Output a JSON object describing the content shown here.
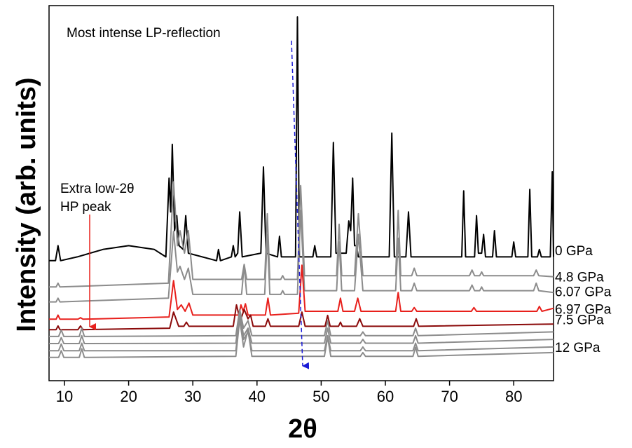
{
  "chart_data": {
    "type": "line",
    "x_label": "2θ",
    "y_label": "Intensity (arb.  units)",
    "xlim": [
      7.6,
      86.2
    ],
    "ylim": [
      0,
      100
    ],
    "xticks": [
      10,
      20,
      30,
      40,
      50,
      60,
      70,
      80
    ],
    "annotations": [
      {
        "text": "Most intense LP-reflection",
        "color": "#1a1ad6"
      },
      {
        "text": [
          "Extra low-2θ",
          "HP peak"
        ],
        "color": "#e8201c"
      }
    ],
    "series": [
      {
        "name": "0 GPa",
        "color": "#000000",
        "x": [
          7.6,
          8.6,
          9,
          9.4,
          12,
          16,
          20,
          24,
          25.8,
          26.3,
          26.55,
          26.8,
          27.15,
          27.5,
          27.85,
          28.5,
          28.9,
          29.3,
          33.7,
          34,
          34.3,
          36,
          36.3,
          36.6,
          37,
          37.3,
          37.7,
          40.6,
          41,
          41.4,
          43.2,
          43.5,
          43.8,
          46,
          46.3,
          46.6,
          48.7,
          49,
          49.3,
          51.5,
          51.9,
          52.3,
          53.9,
          54.3,
          54.6,
          54.9,
          55.2,
          55.5,
          55.8,
          60.6,
          61,
          61.4,
          63.2,
          63.6,
          64,
          71.9,
          72.2,
          72.5,
          73.9,
          74.2,
          74.5,
          75,
          75.3,
          75.6,
          76.7,
          77,
          77.3,
          79.7,
          80,
          80.3,
          82.2,
          82.5,
          82.8,
          83.7,
          84,
          84.3,
          85.7,
          86,
          86.2
        ],
        "values": [
          32,
          32,
          36,
          32,
          33,
          35,
          36,
          35,
          33,
          54,
          45,
          63,
          40,
          44,
          36,
          35,
          44,
          34,
          32,
          35,
          32,
          33,
          36,
          33,
          34,
          45,
          33,
          34,
          57,
          34,
          33,
          38.5,
          33,
          33,
          97,
          33,
          33,
          36,
          33,
          33,
          63.5,
          34,
          34,
          42.6,
          40,
          54,
          36,
          36,
          33,
          33,
          66,
          33,
          33,
          45,
          33,
          33,
          50.6,
          33,
          33,
          44,
          34,
          34,
          39,
          33,
          33,
          40,
          33,
          33,
          37,
          33,
          33,
          51,
          33,
          33,
          35,
          33,
          33,
          55.7,
          33
        ]
      },
      {
        "name": "4.8 GPa",
        "color": "#8c8c8c",
        "x": [
          7.6,
          8.7,
          9,
          9.3,
          26.2,
          27,
          27.6,
          28,
          28.7,
          29.3,
          30,
          37.6,
          38,
          38.4,
          41.2,
          41.6,
          42,
          43.7,
          44,
          44.3,
          46.3,
          46.8,
          47.4,
          52.4,
          52.8,
          53.2,
          55.2,
          55.8,
          56.5,
          61.6,
          62,
          62.4,
          64.1,
          64.5,
          64.9,
          73.1,
          73.5,
          73.9,
          74.7,
          75,
          75.3,
          83.1,
          83.5,
          83.9,
          86.2
        ],
        "values": [
          25,
          25,
          26,
          25,
          26,
          53,
          36,
          40,
          34,
          40,
          27,
          27,
          31,
          27,
          27,
          44.5,
          27,
          27,
          28,
          27,
          27,
          52,
          28,
          28,
          41.7,
          28,
          28,
          44.5,
          28,
          28,
          45.4,
          28,
          28,
          30,
          28,
          28,
          29.5,
          28,
          28,
          29,
          28,
          28,
          29.5,
          28,
          27.7
        ]
      },
      {
        "name": "6.07 GPa",
        "color": "#8c8c8c",
        "x": [
          7.6,
          8.7,
          9,
          9.3,
          26.2,
          27,
          27.6,
          28,
          28.7,
          29.3,
          30,
          37.6,
          38,
          38.4,
          41.2,
          41.6,
          42,
          43.7,
          44,
          44.3,
          46.3,
          46.8,
          47.4,
          52.4,
          52.8,
          53.2,
          55.2,
          55.8,
          56.5,
          61.6,
          62,
          62.4,
          64.1,
          64.5,
          64.9,
          73.1,
          73.5,
          73.9,
          74.7,
          75,
          75.3,
          83.1,
          83.5,
          83.9,
          86.2
        ],
        "values": [
          21,
          21,
          22,
          21,
          22,
          39.8,
          29,
          30.5,
          27,
          30,
          23,
          23,
          30.8,
          23,
          23,
          39,
          23,
          23,
          24,
          23,
          23,
          45.4,
          24,
          24,
          37,
          24,
          24,
          39,
          24,
          24,
          38,
          24,
          24,
          26,
          24,
          24,
          25.5,
          24,
          24,
          25,
          24,
          24,
          26,
          24,
          23.5
        ]
      },
      {
        "name": "6.97 GPa",
        "color": "#e8201c",
        "x": [
          7.6,
          8.7,
          9,
          9.3,
          12.1,
          12.5,
          12.9,
          26.3,
          27,
          27.6,
          28.2,
          28.8,
          29.4,
          30,
          37.2,
          37.5,
          37.85,
          38.2,
          38.6,
          41.3,
          41.7,
          42.1,
          46.5,
          47,
          47.5,
          52.6,
          53,
          53.4,
          55.2,
          55.7,
          56.2,
          61.6,
          62,
          62.4,
          64.1,
          64.5,
          64.9,
          73.4,
          73.8,
          74.2,
          83.6,
          84,
          84.4,
          86.2
        ],
        "values": [
          16.4,
          16.4,
          17.5,
          16.4,
          16.4,
          16.8,
          16.4,
          17,
          26.7,
          19,
          20.2,
          18.5,
          20.7,
          17.5,
          17.5,
          20.2,
          18.5,
          20.5,
          17.5,
          17.5,
          22,
          17.5,
          18,
          30.8,
          18.5,
          18.5,
          22,
          18.5,
          18.5,
          22,
          18.5,
          18.5,
          23.5,
          18.5,
          18.5,
          19.5,
          18.5,
          18.5,
          19.5,
          18.5,
          18.5,
          19.8,
          18.5,
          19.3
        ]
      },
      {
        "name": "7.5 GPa",
        "color": "#8b0a0a",
        "x": [
          7.6,
          8.7,
          9,
          9.3,
          12.1,
          12.5,
          12.9,
          26.4,
          27,
          27.8,
          28.6,
          29,
          29.4,
          36.3,
          36.8,
          37.4,
          38,
          38.6,
          39,
          39.4,
          41.3,
          41.7,
          42.1,
          46.5,
          47,
          47.5,
          50.6,
          51,
          51.4,
          52.7,
          53,
          53.3,
          55.5,
          56,
          56.5,
          64.4,
          64.8,
          65.2,
          86.2
        ],
        "values": [
          13.6,
          13.6,
          14.6,
          13.6,
          13.6,
          14.6,
          13.6,
          14,
          18.3,
          14.5,
          14.5,
          15.6,
          14.5,
          14.5,
          20.2,
          16,
          19,
          16.5,
          17.5,
          14.5,
          14.5,
          16.5,
          14.5,
          14.5,
          18.3,
          14.5,
          14.5,
          17.4,
          14.5,
          14.5,
          15.6,
          14.5,
          14.5,
          16.5,
          14.5,
          14.5,
          16.5,
          14.5,
          15.1
        ]
      },
      {
        "color": "#8c8c8c",
        "x": [
          7.6,
          9.1,
          9.5,
          9.9,
          12.3,
          12.7,
          13.1,
          36.7,
          37.3,
          37.9,
          38.6,
          39.2,
          50.5,
          51,
          51.5,
          56.1,
          56.5,
          56.9,
          64.3,
          64.7,
          65.1,
          86.2
        ],
        "values": [
          11.8,
          11.8,
          13.5,
          11.8,
          11.8,
          14,
          11.8,
          12,
          19,
          14,
          16,
          12,
          12,
          16,
          12,
          12,
          13,
          12,
          12,
          14,
          12,
          13
        ]
      },
      {
        "color": "#8c8c8c",
        "x": [
          7.6,
          9.1,
          9.5,
          9.9,
          12.3,
          12.7,
          13.1,
          36.7,
          37.3,
          37.9,
          38.6,
          39.2,
          50.5,
          51,
          51.5,
          56.1,
          56.5,
          56.9,
          64.3,
          64.7,
          65.1,
          86.2
        ],
        "values": [
          9.9,
          9.9,
          11.5,
          9.9,
          9.9,
          12,
          9.9,
          10,
          18,
          12,
          14,
          10,
          10,
          14,
          10,
          10,
          11,
          10,
          10,
          12,
          10,
          11
        ]
      },
      {
        "color": "#8c8c8c",
        "x": [
          7.6,
          9.1,
          9.5,
          9.9,
          12.3,
          12.7,
          13.1,
          36.7,
          37.3,
          37.9,
          38.6,
          39.2,
          50.5,
          51,
          51.5,
          56.1,
          56.5,
          56.9,
          64.3,
          64.7,
          65.1,
          86.2
        ],
        "values": [
          8,
          8,
          9.8,
          8,
          8,
          10,
          8,
          8,
          17,
          11,
          13,
          8,
          8,
          12,
          8,
          8,
          9,
          8,
          8,
          10,
          8,
          9
        ]
      },
      {
        "name": "12 GPa",
        "color": "#8c8c8c",
        "x": [
          7.6,
          9.1,
          9.5,
          9.9,
          12.3,
          12.7,
          13.1,
          36.7,
          37.3,
          37.9,
          38.6,
          39.2,
          50.5,
          51,
          51.5,
          56.1,
          56.5,
          56.9,
          64.3,
          64.7,
          65.1,
          86.2
        ],
        "values": [
          6.2,
          6.2,
          8,
          6.2,
          6.2,
          8.5,
          6.2,
          6.5,
          16.4,
          9,
          13.5,
          6.5,
          6.5,
          11.6,
          6.5,
          6.5,
          7.5,
          6.5,
          6.5,
          8.9,
          6.5,
          7.5
        ]
      }
    ]
  }
}
